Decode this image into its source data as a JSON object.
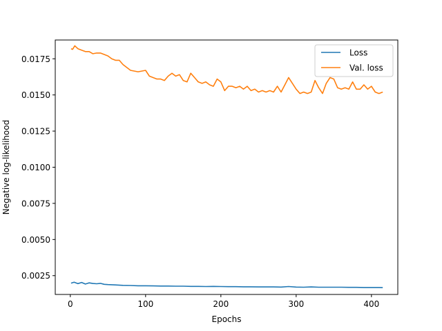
{
  "chart_data": {
    "type": "line",
    "title": "",
    "xlabel": "Epochs",
    "ylabel": "Negative log-likelihood",
    "xlim": [
      -20,
      435
    ],
    "ylim": [
      0.0012,
      0.0188
    ],
    "xticks": [
      0,
      100,
      200,
      300,
      400
    ],
    "xtick_labels": [
      "0",
      "100",
      "200",
      "300",
      "400"
    ],
    "yticks": [
      0.0025,
      0.005,
      0.0075,
      0.01,
      0.0125,
      0.015,
      0.0175
    ],
    "ytick_labels": [
      "0.0025",
      "0.0050",
      "0.0075",
      "0.0100",
      "0.0125",
      "0.0150",
      "0.0175"
    ],
    "grid": false,
    "legend_position": "top-right",
    "series": [
      {
        "name": "Loss",
        "color": "#1f77b4",
        "x": [
          1,
          5,
          10,
          15,
          20,
          25,
          30,
          35,
          40,
          45,
          50,
          60,
          70,
          80,
          90,
          100,
          110,
          120,
          130,
          140,
          150,
          160,
          170,
          180,
          190,
          200,
          210,
          220,
          230,
          240,
          250,
          260,
          270,
          280,
          290,
          300,
          310,
          320,
          330,
          340,
          350,
          360,
          370,
          380,
          390,
          400,
          410,
          415
        ],
        "y": [
          0.00198,
          0.00205,
          0.00195,
          0.00203,
          0.00192,
          0.002,
          0.00196,
          0.00194,
          0.00197,
          0.0019,
          0.00188,
          0.00186,
          0.00183,
          0.00182,
          0.0018,
          0.0018,
          0.00179,
          0.00178,
          0.00178,
          0.00177,
          0.00177,
          0.00176,
          0.00176,
          0.00175,
          0.00176,
          0.00175,
          0.00174,
          0.00174,
          0.00173,
          0.00173,
          0.00172,
          0.00172,
          0.00172,
          0.00171,
          0.00175,
          0.00171,
          0.0017,
          0.00172,
          0.0017,
          0.0017,
          0.0017,
          0.0017,
          0.00169,
          0.00169,
          0.00168,
          0.00168,
          0.00168,
          0.00167
        ]
      },
      {
        "name": "Val. loss",
        "color": "#ff7f0e",
        "x": [
          1,
          3,
          6,
          10,
          15,
          20,
          25,
          30,
          35,
          40,
          45,
          50,
          55,
          60,
          65,
          70,
          80,
          90,
          100,
          105,
          110,
          115,
          120,
          125,
          130,
          135,
          140,
          145,
          150,
          155,
          160,
          165,
          170,
          175,
          180,
          185,
          190,
          195,
          200,
          205,
          210,
          215,
          220,
          225,
          230,
          235,
          240,
          245,
          250,
          255,
          260,
          265,
          270,
          275,
          280,
          285,
          290,
          295,
          300,
          305,
          310,
          315,
          320,
          325,
          330,
          335,
          340,
          345,
          350,
          355,
          360,
          365,
          370,
          375,
          380,
          385,
          390,
          395,
          400,
          405,
          410,
          415
        ],
        "y": [
          0.0182,
          0.01815,
          0.0184,
          0.0182,
          0.0181,
          0.018,
          0.018,
          0.01785,
          0.0179,
          0.0179,
          0.0178,
          0.0177,
          0.0175,
          0.0174,
          0.0174,
          0.0171,
          0.0167,
          0.0166,
          0.0167,
          0.0163,
          0.0162,
          0.0161,
          0.0161,
          0.016,
          0.0163,
          0.0165,
          0.0163,
          0.0164,
          0.016,
          0.0159,
          0.0165,
          0.0162,
          0.0159,
          0.0158,
          0.0159,
          0.0157,
          0.0156,
          0.0161,
          0.0159,
          0.0153,
          0.0156,
          0.0156,
          0.0155,
          0.0156,
          0.0154,
          0.0156,
          0.0153,
          0.0154,
          0.0152,
          0.0153,
          0.0152,
          0.0153,
          0.0152,
          0.0156,
          0.0152,
          0.0157,
          0.0162,
          0.0158,
          0.0154,
          0.0151,
          0.0152,
          0.0151,
          0.0152,
          0.016,
          0.0155,
          0.0151,
          0.0158,
          0.0162,
          0.0161,
          0.0155,
          0.0154,
          0.0155,
          0.0154,
          0.0159,
          0.0154,
          0.0154,
          0.0157,
          0.0154,
          0.0156,
          0.0152,
          0.0151,
          0.0152
        ]
      }
    ]
  }
}
